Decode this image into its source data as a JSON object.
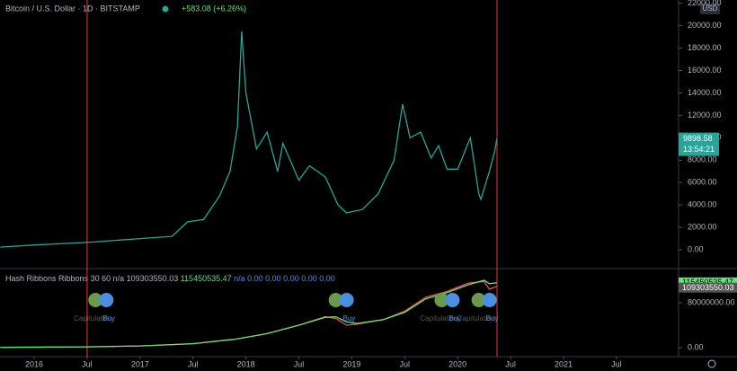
{
  "chart_data": [
    {
      "type": "line",
      "title": "Bitcoin / U.S. Dollar · 1D · BITSTAMP",
      "change": "+583.08 (+6.26%)",
      "countdown": "13:54:21",
      "currency": "USD",
      "x": [
        2015.68,
        2016.0,
        2016.5,
        2017.0,
        2017.3,
        2017.45,
        2017.6,
        2017.75,
        2017.85,
        2017.92,
        2017.96,
        2018.0,
        2018.1,
        2018.2,
        2018.3,
        2018.35,
        2018.5,
        2018.6,
        2018.75,
        2018.87,
        2018.95,
        2019.1,
        2019.25,
        2019.4,
        2019.48,
        2019.55,
        2019.65,
        2019.75,
        2019.82,
        2019.9,
        2020.0,
        2020.12,
        2020.2,
        2020.22,
        2020.3,
        2020.35,
        2020.37
      ],
      "series": [
        {
          "name": "BTCUSD",
          "color": "#26a69a",
          "values": [
            240,
            430,
            650,
            1000,
            1200,
            2500,
            2700,
            4800,
            7000,
            11000,
            19500,
            14000,
            9000,
            10500,
            7000,
            9500,
            6200,
            7500,
            6500,
            4000,
            3300,
            3600,
            5000,
            8000,
            13000,
            10000,
            10500,
            8200,
            9300,
            7200,
            7200,
            10000,
            5000,
            4500,
            7000,
            8800,
            9898.58
          ]
        }
      ],
      "xlim": [
        2015.677,
        2022.087
      ],
      "xticks": [
        2016,
        {
          "value": 2016.5,
          "label": "Jul"
        },
        2017,
        {
          "value": 2017.5,
          "label": "Jul"
        },
        2018,
        {
          "value": 2018.5,
          "label": "Jul"
        },
        2019,
        {
          "value": 2019.5,
          "label": "Jul"
        },
        2020,
        {
          "value": 2020.5,
          "label": "Jul"
        },
        2021,
        {
          "value": 2021.5,
          "label": "Jul"
        }
      ],
      "ylim": [
        -1600,
        22300
      ],
      "yticks": [
        {
          "value": 0,
          "label": "0.00"
        },
        {
          "value": 2000,
          "label": "2000.00"
        },
        {
          "value": 4000,
          "label": "4000.00"
        },
        {
          "value": 6000,
          "label": "6000.00"
        },
        {
          "value": 8000,
          "label": "8000.00"
        },
        {
          "value": 10000,
          "label": "10000.00"
        },
        {
          "value": 12000,
          "label": "12000.00"
        },
        {
          "value": 14000,
          "label": "14000.00"
        },
        {
          "value": 16000,
          "label": "16000.00"
        },
        {
          "value": 18000,
          "label": "18000.00"
        },
        {
          "value": 20000,
          "label": "20000.00"
        },
        {
          "value": 22000,
          "label": "22000.00"
        }
      ],
      "markers": [
        2016.5,
        2020.372
      ]
    },
    {
      "type": "line",
      "title": "Hash Ribbons",
      "params": "Ribbons 30 60",
      "readout_before": "n/a",
      "readout_after": "n/a 0.00 0.00 0.00 0.00 0.00",
      "x": [
        2015.68,
        2016.5,
        2017.0,
        2017.5,
        2017.9,
        2018.2,
        2018.5,
        2018.75,
        2018.85,
        2018.95,
        2019.05,
        2019.3,
        2019.5,
        2019.7,
        2019.9,
        2020.1,
        2020.25,
        2020.3,
        2020.37
      ],
      "series": [
        {
          "name": "30",
          "color": "#ef5350",
          "values": [
            500000,
            1500000,
            3000000,
            7000000,
            15000000,
            25000000,
            40000000,
            55000000,
            52000000,
            40000000,
            42000000,
            50000000,
            65000000,
            90000000,
            100000000,
            115000000,
            118000000,
            104000000,
            109303550.03
          ]
        },
        {
          "name": "60",
          "color": "#66e07a",
          "values": [
            500000,
            1500000,
            3000000,
            7000000,
            15000000,
            25000000,
            40000000,
            54000000,
            55000000,
            46000000,
            43000000,
            50000000,
            63000000,
            87000000,
            98000000,
            112000000,
            120000000,
            114000000,
            115450535.47
          ]
        }
      ],
      "xlim": [
        2015.677,
        2022.087
      ],
      "ylim": [
        -16000000,
        139200000
      ],
      "yticks": [
        {
          "value": 0,
          "label": "0.00"
        },
        {
          "value": 80000000,
          "label": "80000000.00"
        }
      ],
      "signals": [
        {
          "x": 2016.63,
          "labels": [
            "Capitulation",
            "Buy"
          ]
        },
        {
          "x": 2018.9,
          "labels": [
            "Buy"
          ]
        },
        {
          "x": 2019.9,
          "labels": [
            "Capitulation",
            "Buy"
          ]
        },
        {
          "x": 2020.25,
          "labels": [
            "Capitulation",
            "Buy"
          ]
        }
      ]
    }
  ]
}
